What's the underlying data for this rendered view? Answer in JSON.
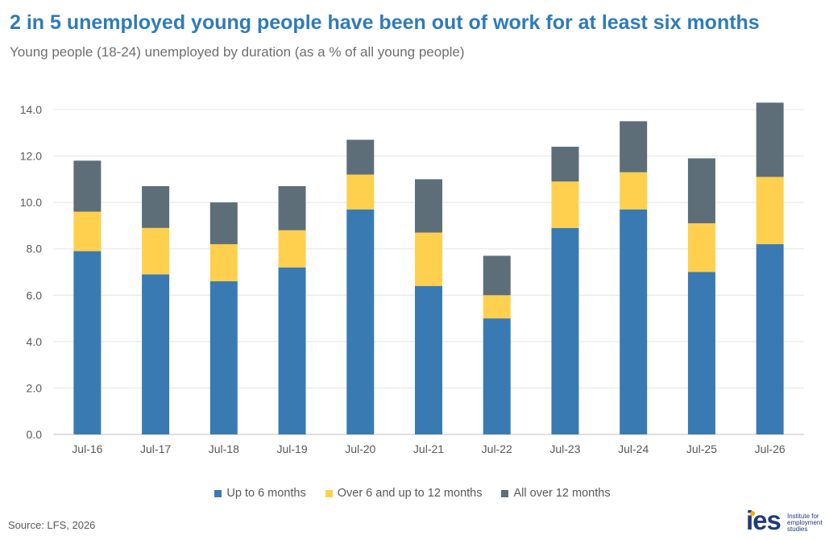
{
  "title": "2 in 5 unemployed young people have been out of work for at least six months",
  "subtitle": "Young people (18-24) unemployed by duration (as a % of all young people)",
  "source": "Source: LFS, 2026",
  "logo": {
    "mark": "ies",
    "text": "Institute for employment studies"
  },
  "colors": {
    "title": "#2F7BB8",
    "up_to_6": "#3A7AB3",
    "over_6_to_12": "#FFD04D",
    "over_12": "#5D6E79",
    "grid": "#E4E4E4"
  },
  "chart_data": {
    "type": "bar",
    "stacked": true,
    "categories": [
      "Jul-16",
      "Jul-17",
      "Jul-18",
      "Jul-19",
      "Jul-20",
      "Jul-21",
      "Jul-22",
      "Jul-23",
      "Jul-24",
      "Jul-25",
      "Jul-26"
    ],
    "series": [
      {
        "name": "Up to 6 months",
        "color": "#3A7AB3",
        "values": [
          7.9,
          6.9,
          6.6,
          7.2,
          9.7,
          6.4,
          5.0,
          8.9,
          9.7,
          7.0,
          8.2
        ]
      },
      {
        "name": "Over 6 and up to 12 months",
        "color": "#FFD04D",
        "values": [
          1.7,
          2.0,
          1.6,
          1.6,
          1.5,
          2.3,
          1.0,
          2.0,
          1.6,
          2.1,
          2.9
        ]
      },
      {
        "name": "All over 12 months",
        "color": "#5D6E79",
        "values": [
          2.2,
          1.8,
          1.8,
          1.9,
          1.5,
          2.3,
          1.7,
          1.5,
          2.2,
          2.8,
          3.2
        ]
      }
    ],
    "yticks": [
      "0.0",
      "2.0",
      "4.0",
      "6.0",
      "8.0",
      "10.0",
      "12.0",
      "14.0"
    ],
    "ylim": [
      0,
      14
    ],
    "grid": true,
    "legend_position": "bottom"
  }
}
